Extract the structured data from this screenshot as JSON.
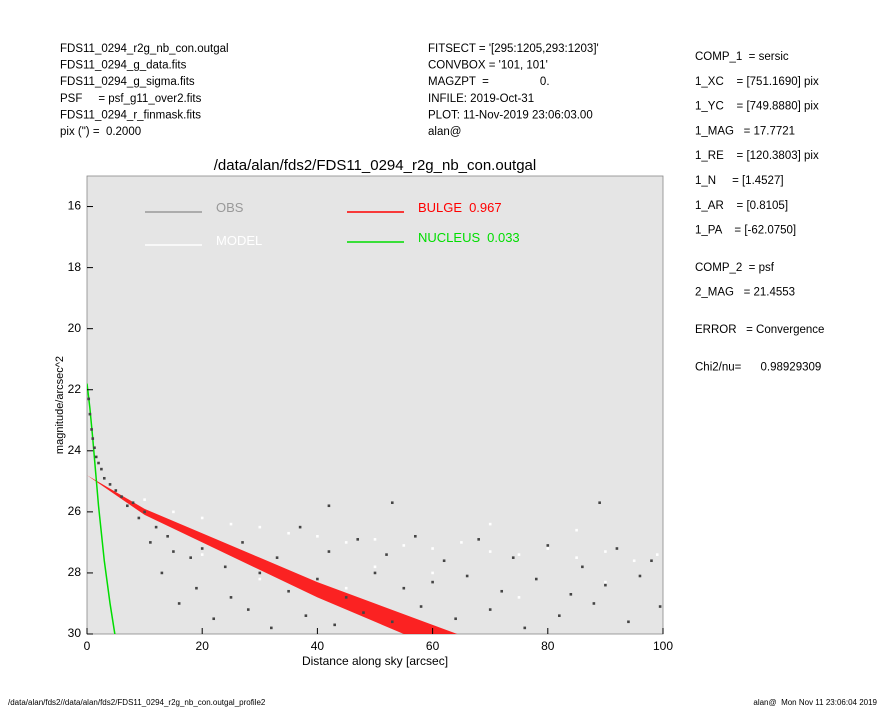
{
  "header": {
    "left": [
      "FDS11_0294_r2g_nb_con.outgal",
      "FDS11_0294_g_data.fits",
      "FDS11_0294_g_sigma.fits",
      "PSF     = psf_g11_over2.fits",
      "FDS11_0294_r_finmask.fits",
      "pix (\") =  0.2000"
    ],
    "middle": [
      "FITSECT = '[295:1205,293:1203]'",
      "CONVBOX = '101, 101'",
      "MAGZPT  =                0.",
      "INFILE: 2019-Oct-31",
      "PLOT: 11-Nov-2019 23:06:03.00",
      "alan@"
    ],
    "right": [
      [
        "COMP_1  = sersic",
        "1_XC    = [751.1690] pix",
        "1_YC    = [749.8880] pix",
        "1_MAG   = 17.7721",
        "1_RE    = [120.3803] pix",
        "1_N     = [1.4527]",
        "1_AR    = [0.8105]",
        "1_PA    = [-62.0750]"
      ],
      [
        "COMP_2  = psf",
        "2_MAG   = 21.4553"
      ],
      [
        "ERROR   = Convergence"
      ],
      [
        "Chi2/nu=      0.98929309"
      ]
    ]
  },
  "footer": {
    "left": "/data/alan/fds2//data/alan/fds2/FDS11_0294_r2g_nb_con.outgal_profile2",
    "right": "alan@  Mon Nov 11 23:06:04 2019"
  },
  "chart_data": {
    "type": "profile",
    "title": "/data/alan/fds2/FDS11_0294_r2g_nb_con.outgal",
    "xlabel": "Distance along sky [arcsec]",
    "ylabel": "magnitude/arcsec^2",
    "xlim": [
      0,
      100
    ],
    "xticks": [
      0,
      20,
      40,
      60,
      80,
      100
    ],
    "ylim": [
      15,
      30
    ],
    "yticks": [
      16,
      18,
      20,
      22,
      24,
      26,
      28,
      30
    ],
    "y_inverted": true,
    "background": "#e5e5e5",
    "series": [
      {
        "name": "OBS",
        "color": "#444444",
        "legend_color": "#999999",
        "kind": "scatter",
        "x": [
          0.3,
          0.5,
          0.8,
          1.0,
          1.3,
          1.6,
          2.0,
          2.5,
          3,
          4,
          5,
          6,
          7,
          8,
          9,
          10,
          11,
          12,
          13,
          14,
          15,
          16,
          18,
          19,
          20,
          22,
          24,
          25,
          27,
          28,
          30,
          32,
          33,
          35,
          37,
          38,
          40,
          42,
          42,
          43,
          45,
          47,
          48,
          50,
          52,
          53,
          53,
          55,
          57,
          58,
          60,
          62,
          64,
          66,
          68,
          70,
          72,
          74,
          76,
          78,
          80,
          82,
          84,
          86,
          88,
          89,
          90,
          92,
          94,
          96,
          98,
          99.5
        ],
        "values": [
          22.3,
          22.8,
          23.3,
          23.6,
          23.9,
          24.2,
          24.4,
          24.6,
          24.9,
          25.1,
          25.3,
          25.5,
          25.8,
          25.7,
          26.2,
          26.0,
          27.0,
          26.5,
          28.0,
          26.8,
          27.3,
          29.0,
          27.5,
          28.5,
          27.2,
          29.5,
          27.8,
          28.8,
          27.0,
          29.2,
          28.0,
          29.8,
          27.5,
          28.6,
          26.5,
          29.4,
          28.2,
          27.3,
          25.8,
          29.7,
          28.8,
          26.9,
          29.3,
          28.0,
          27.4,
          29.6,
          25.7,
          28.5,
          26.8,
          29.1,
          28.3,
          27.6,
          29.5,
          28.1,
          26.9,
          29.2,
          28.6,
          27.5,
          29.8,
          28.2,
          27.1,
          29.4,
          28.7,
          27.8,
          29.0,
          25.7,
          28.4,
          27.2,
          29.6,
          28.1,
          27.6,
          29.1
        ]
      },
      {
        "name": "MODEL",
        "color": "#ffffff",
        "legend_color": "#ffffff",
        "kind": "scatter",
        "x": [
          10,
          15,
          20,
          20,
          25,
          30,
          30,
          35,
          40,
          45,
          45,
          50,
          50,
          55,
          60,
          60,
          65,
          70,
          70,
          75,
          75,
          80,
          85,
          85,
          90,
          90,
          95,
          99
        ],
        "values": [
          25.6,
          26.0,
          26.2,
          27.4,
          26.4,
          26.5,
          28.2,
          26.7,
          26.8,
          27.0,
          28.5,
          26.9,
          27.8,
          27.1,
          27.2,
          28.0,
          27.0,
          27.3,
          26.4,
          27.4,
          28.8,
          27.2,
          27.5,
          26.6,
          27.3,
          28.3,
          27.6,
          27.4
        ]
      },
      {
        "name": "BULGE",
        "fraction": 0.967,
        "color": "#ff0000",
        "kind": "band",
        "x": [
          0,
          10,
          20,
          30,
          40,
          50,
          60,
          70
        ],
        "values": [
          24.8,
          25.9,
          26.7,
          27.5,
          28.3,
          29.0,
          29.7,
          30.4
        ],
        "values_low": [
          24.8,
          26.1,
          27.0,
          27.9,
          28.8,
          29.6,
          30.4,
          31.2
        ]
      },
      {
        "name": "NUCLEUS",
        "fraction": 0.033,
        "color": "#00dd00",
        "kind": "line",
        "x": [
          0,
          0.5,
          1,
          1.5,
          2,
          3,
          4,
          5,
          6
        ],
        "values": [
          21.8,
          22.6,
          23.6,
          24.7,
          25.8,
          27.6,
          29.0,
          30.2,
          31.3
        ]
      }
    ]
  }
}
